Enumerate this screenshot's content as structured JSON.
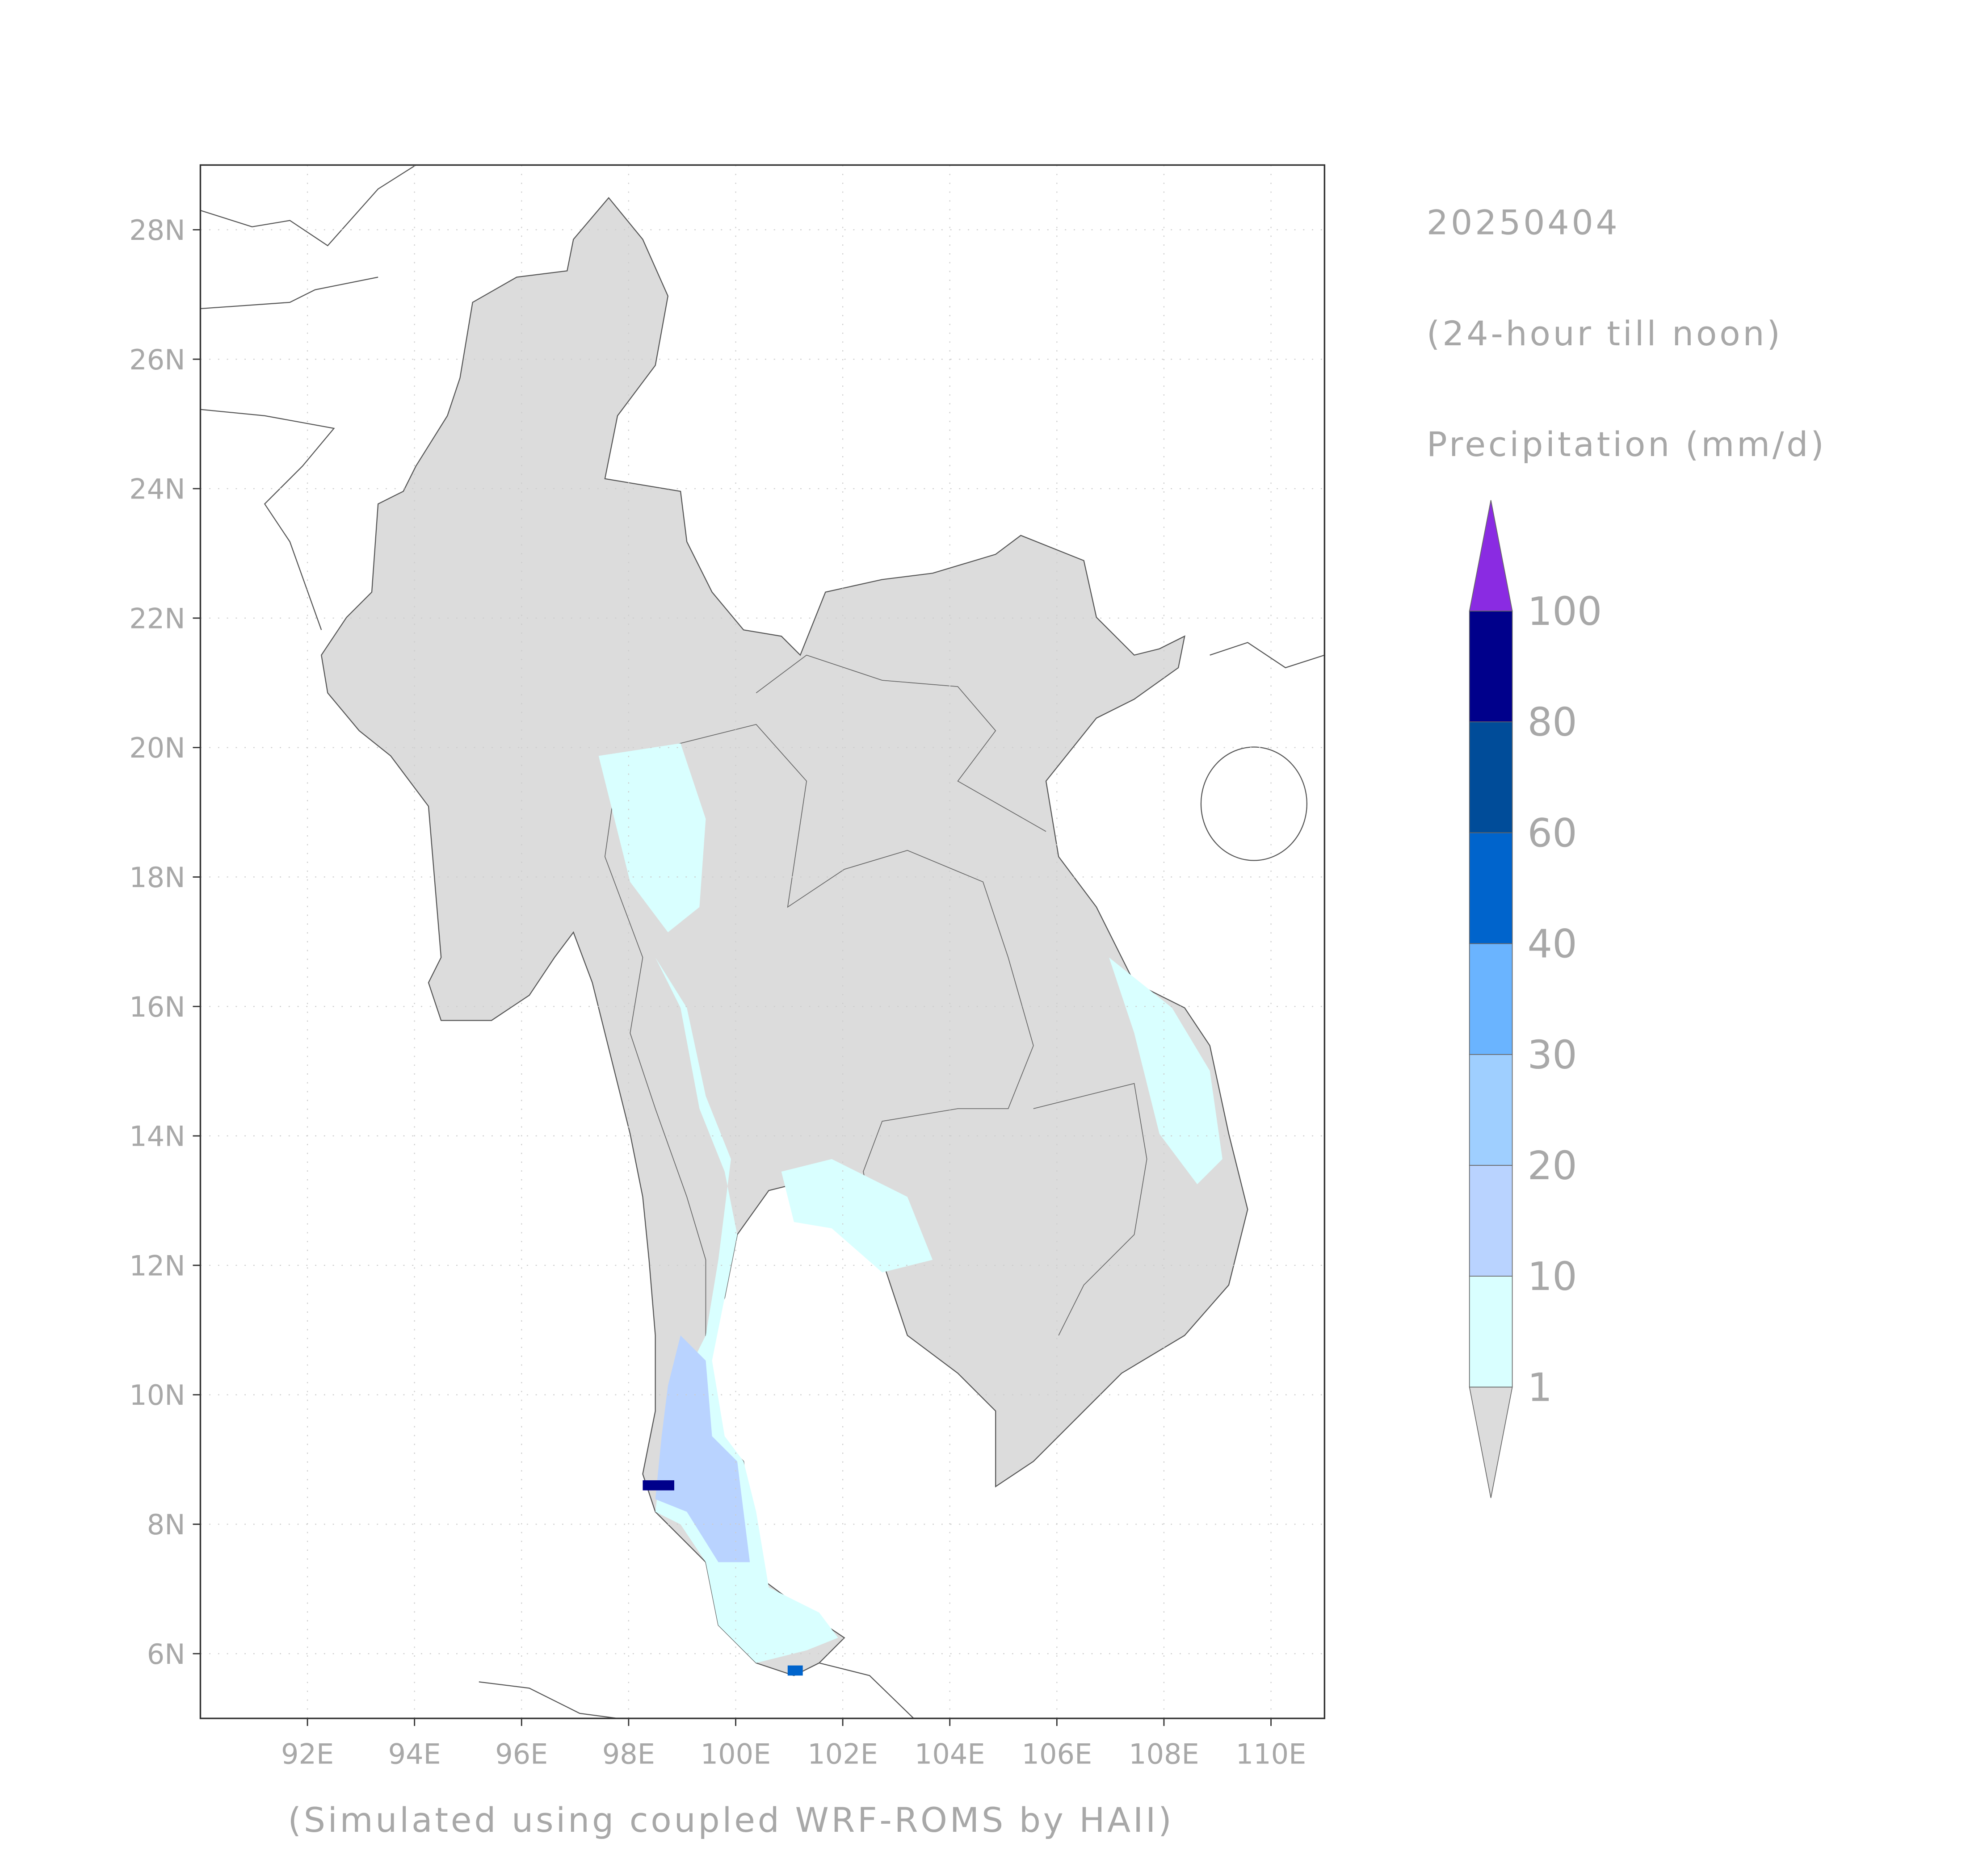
{
  "chart_data": {
    "type": "map",
    "title": "20250404",
    "subtitle": "(24-hour till noon)",
    "variable_label": "Precipitation (mm/d)",
    "footnote": "(Simulated using coupled WRF-ROMS by HAII)",
    "xlim": [
      90,
      111
    ],
    "ylim": [
      5,
      29
    ],
    "xticks": [
      {
        "value": 92,
        "label": "92E"
      },
      {
        "value": 94,
        "label": "94E"
      },
      {
        "value": 96,
        "label": "96E"
      },
      {
        "value": 98,
        "label": "98E"
      },
      {
        "value": 100,
        "label": "100E"
      },
      {
        "value": 102,
        "label": "102E"
      },
      {
        "value": 104,
        "label": "104E"
      },
      {
        "value": 106,
        "label": "106E"
      },
      {
        "value": 108,
        "label": "108E"
      },
      {
        "value": 110,
        "label": "110E"
      }
    ],
    "yticks": [
      {
        "value": 6,
        "label": "6N"
      },
      {
        "value": 8,
        "label": "8N"
      },
      {
        "value": 10,
        "label": "10N"
      },
      {
        "value": 12,
        "label": "12N"
      },
      {
        "value": 14,
        "label": "14N"
      },
      {
        "value": 16,
        "label": "16N"
      },
      {
        "value": 18,
        "label": "18N"
      },
      {
        "value": 20,
        "label": "20N"
      },
      {
        "value": 22,
        "label": "22N"
      },
      {
        "value": 24,
        "label": "24N"
      },
      {
        "value": 26,
        "label": "26N"
      },
      {
        "value": 28,
        "label": "28N"
      }
    ],
    "grid": true,
    "colorbar": {
      "levels": [
        1,
        10,
        20,
        30,
        40,
        60,
        80,
        100
      ],
      "colors": [
        "#dcdcdc",
        "#d9ffff",
        "#b9d3ff",
        "#9fcfff",
        "#6ab4ff",
        "#0064cc",
        "#004c99",
        "#00008b",
        "#8a2be2"
      ]
    }
  }
}
